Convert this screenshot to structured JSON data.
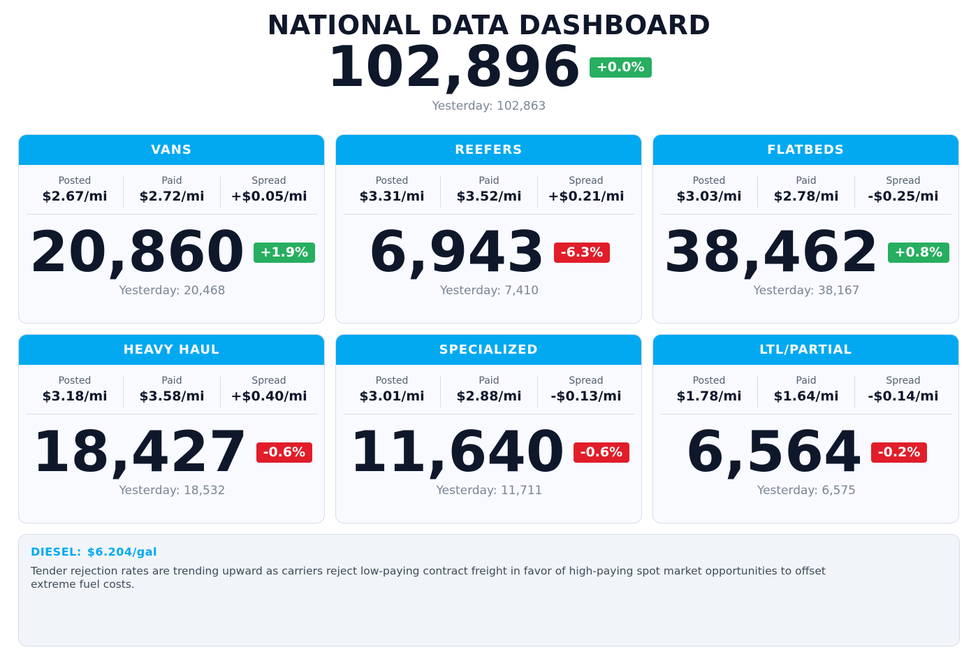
{
  "header": {
    "title": "NATIONAL DATA DASHBOARD",
    "total": "102,896",
    "change": "+0.0%",
    "change_direction": "up",
    "yesterday": "Yesterday: 102,863"
  },
  "colors": {
    "accent": "#03a9f0",
    "positive": "#27ae60",
    "negative": "#e11d2a"
  },
  "metric_labels": {
    "posted": "Posted",
    "paid": "Paid",
    "spread": "Spread"
  },
  "cards": [
    {
      "name": "VANS",
      "posted": "$2.67/mi",
      "paid": "$2.72/mi",
      "spread": "+$0.05/mi",
      "count": "20,860",
      "change": "+1.9%",
      "direction": "up",
      "yesterday": "Yesterday: 20,468"
    },
    {
      "name": "REEFERS",
      "posted": "$3.31/mi",
      "paid": "$3.52/mi",
      "spread": "+$0.21/mi",
      "count": "6,943",
      "change": "-6.3%",
      "direction": "down",
      "yesterday": "Yesterday: 7,410"
    },
    {
      "name": "FLATBEDS",
      "posted": "$3.03/mi",
      "paid": "$2.78/mi",
      "spread": "-$0.25/mi",
      "count": "38,462",
      "change": "+0.8%",
      "direction": "up",
      "yesterday": "Yesterday: 38,167"
    },
    {
      "name": "HEAVY HAUL",
      "posted": "$3.18/mi",
      "paid": "$3.58/mi",
      "spread": "+$0.40/mi",
      "count": "18,427",
      "change": "-0.6%",
      "direction": "down",
      "yesterday": "Yesterday: 18,532"
    },
    {
      "name": "SPECIALIZED",
      "posted": "$3.01/mi",
      "paid": "$2.88/mi",
      "spread": "-$0.13/mi",
      "count": "11,640",
      "change": "-0.6%",
      "direction": "down",
      "yesterday": "Yesterday: 11,711"
    },
    {
      "name": "LTL/PARTIAL",
      "posted": "$1.78/mi",
      "paid": "$1.64/mi",
      "spread": "-$0.14/mi",
      "count": "6,564",
      "change": "-0.2%",
      "direction": "down",
      "yesterday": "Yesterday: 6,575"
    }
  ],
  "footer": {
    "diesel_label": "DIESEL:",
    "diesel_value": "$6.204/gal",
    "note": "Tender rejection rates are trending upward as carriers reject low-paying contract freight in favor of high-paying spot market opportunities to offset extreme fuel costs."
  }
}
